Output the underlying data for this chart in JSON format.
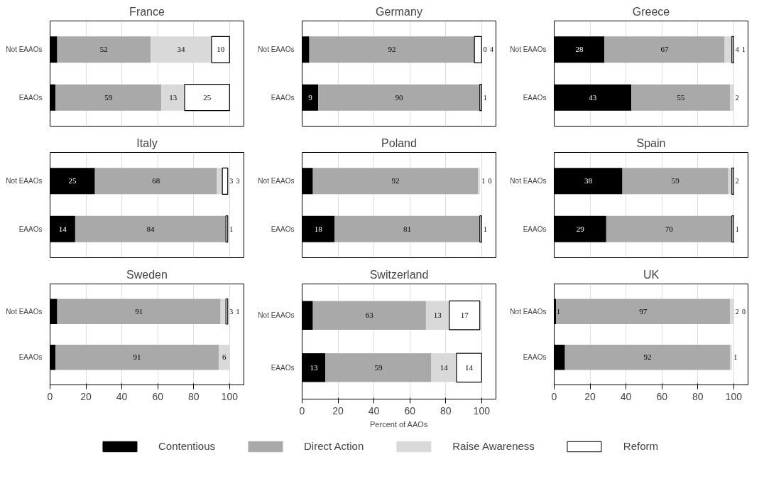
{
  "chart_data": [
    {
      "type": "bar",
      "title": "France",
      "orientation": "horizontal",
      "stacked": true,
      "categories": [
        "Not EAAOs",
        "EAAOs"
      ],
      "xlim": [
        0,
        108
      ],
      "xticks": [
        0,
        20,
        40,
        60,
        80,
        100
      ],
      "grid": "x",
      "tick_labels": "y",
      "series": [
        {
          "color": "#000000",
          "values": [
            4,
            3
          ],
          "value_labels": [
            null,
            null
          ]
        },
        {
          "color": "#a9a9a9",
          "values": [
            52,
            59
          ],
          "value_labels": [
            "52",
            "59"
          ]
        },
        {
          "color": "#d9d9d9",
          "values": [
            34,
            13
          ],
          "value_labels": [
            "34",
            "13"
          ]
        },
        {
          "color": "#ffffff",
          "values": [
            10,
            25
          ],
          "value_labels": [
            "10",
            "25"
          ]
        }
      ]
    },
    {
      "type": "bar",
      "title": "Germany",
      "orientation": "horizontal",
      "stacked": true,
      "categories": [
        "Not EAAOs",
        "EAAOs"
      ],
      "xlim": [
        0,
        108
      ],
      "xticks": [
        0,
        20,
        40,
        60,
        80,
        100
      ],
      "grid": "x",
      "tick_labels": "y",
      "series": [
        {
          "color": "#000000",
          "values": [
            4,
            9
          ],
          "value_labels": [
            null,
            "9"
          ]
        },
        {
          "color": "#a9a9a9",
          "values": [
            92,
            90
          ],
          "value_labels": [
            "92",
            "90"
          ]
        },
        {
          "color": "#d9d9d9",
          "values": [
            0,
            0
          ],
          "value_labels": [
            "0",
            null
          ]
        },
        {
          "color": "#ffffff",
          "values": [
            4,
            1
          ],
          "value_labels": [
            "4",
            "1"
          ]
        }
      ]
    },
    {
      "type": "bar",
      "title": "Greece",
      "orientation": "horizontal",
      "stacked": true,
      "categories": [
        "Not EAAOs",
        "EAAOs"
      ],
      "xlim": [
        0,
        108
      ],
      "xticks": [
        0,
        20,
        40,
        60,
        80,
        100
      ],
      "grid": "x",
      "tick_labels": "y",
      "series": [
        {
          "color": "#000000",
          "values": [
            28,
            43
          ],
          "value_labels": [
            "28",
            "43"
          ]
        },
        {
          "color": "#a9a9a9",
          "values": [
            67,
            55
          ],
          "value_labels": [
            "67",
            "55"
          ]
        },
        {
          "color": "#d9d9d9",
          "values": [
            4,
            2
          ],
          "value_labels": [
            "4",
            "2"
          ]
        },
        {
          "color": "#ffffff",
          "values": [
            1,
            0
          ],
          "value_labels": [
            "1",
            null
          ]
        }
      ]
    },
    {
      "type": "bar",
      "title": "Italy",
      "orientation": "horizontal",
      "stacked": true,
      "categories": [
        "Not EAAOs",
        "EAAOs"
      ],
      "xlim": [
        0,
        108
      ],
      "xticks": [
        0,
        20,
        40,
        60,
        80,
        100
      ],
      "grid": "x",
      "tick_labels": "y",
      "series": [
        {
          "color": "#000000",
          "values": [
            25,
            14
          ],
          "value_labels": [
            "25",
            "14"
          ]
        },
        {
          "color": "#a9a9a9",
          "values": [
            68,
            84
          ],
          "value_labels": [
            "68",
            "84"
          ]
        },
        {
          "color": "#d9d9d9",
          "values": [
            3,
            0
          ],
          "value_labels": [
            "3",
            null
          ]
        },
        {
          "color": "#ffffff",
          "values": [
            3,
            1
          ],
          "value_labels": [
            "3",
            "1"
          ]
        }
      ]
    },
    {
      "type": "bar",
      "title": "Poland",
      "orientation": "horizontal",
      "stacked": true,
      "categories": [
        "Not EAAOs",
        "EAAOs"
      ],
      "xlim": [
        0,
        108
      ],
      "xticks": [
        0,
        20,
        40,
        60,
        80,
        100
      ],
      "grid": "x",
      "tick_labels": "y",
      "series": [
        {
          "color": "#000000",
          "values": [
            6,
            18
          ],
          "value_labels": [
            null,
            "18"
          ]
        },
        {
          "color": "#a9a9a9",
          "values": [
            92,
            81
          ],
          "value_labels": [
            "92",
            "81"
          ]
        },
        {
          "color": "#d9d9d9",
          "values": [
            1,
            0
          ],
          "value_labels": [
            "1",
            null
          ]
        },
        {
          "color": "#ffffff",
          "values": [
            0,
            1
          ],
          "value_labels": [
            "0",
            "1"
          ]
        }
      ]
    },
    {
      "type": "bar",
      "title": "Spain",
      "orientation": "horizontal",
      "stacked": true,
      "categories": [
        "Not EAAOs",
        "EAAOs"
      ],
      "xlim": [
        0,
        108
      ],
      "xticks": [
        0,
        20,
        40,
        60,
        80,
        100
      ],
      "grid": "x",
      "tick_labels": "y",
      "series": [
        {
          "color": "#000000",
          "values": [
            38,
            29
          ],
          "value_labels": [
            "38",
            "29"
          ]
        },
        {
          "color": "#a9a9a9",
          "values": [
            59,
            70
          ],
          "value_labels": [
            "59",
            "70"
          ]
        },
        {
          "color": "#d9d9d9",
          "values": [
            2,
            0
          ],
          "value_labels": [
            "2",
            null
          ]
        },
        {
          "color": "#ffffff",
          "values": [
            1,
            1
          ],
          "value_labels": [
            null,
            "1"
          ]
        }
      ]
    },
    {
      "type": "bar",
      "title": "Sweden",
      "orientation": "horizontal",
      "stacked": true,
      "categories": [
        "Not EAAOs",
        "EAAOs"
      ],
      "xlim": [
        0,
        108
      ],
      "xticks": [
        0,
        20,
        40,
        60,
        80,
        100
      ],
      "grid": "x",
      "series": [
        {
          "color": "#000000",
          "values": [
            4,
            3
          ],
          "value_labels": [
            null,
            null
          ]
        },
        {
          "color": "#a9a9a9",
          "values": [
            91,
            91
          ],
          "value_labels": [
            "91",
            "91"
          ]
        },
        {
          "color": "#d9d9d9",
          "values": [
            3,
            6
          ],
          "value_labels": [
            "3",
            "6"
          ]
        },
        {
          "color": "#ffffff",
          "values": [
            1,
            0
          ],
          "value_labels": [
            "1",
            null
          ]
        }
      ]
    },
    {
      "type": "bar",
      "title": "Switzerland",
      "xlabel": "Percent of AAOs",
      "legend": "bottom",
      "orientation": "horizontal",
      "stacked": true,
      "categories": [
        "Not EAAOs",
        "EAAOs"
      ],
      "xlim": [
        0,
        108
      ],
      "xticks": [
        0,
        20,
        40,
        60,
        80,
        100
      ],
      "grid": "x",
      "series": [
        {
          "name": "Contentious",
          "color": "#000000",
          "values": [
            6,
            13
          ],
          "value_labels": [
            null,
            "13"
          ]
        },
        {
          "name": "Direct Action",
          "color": "#a9a9a9",
          "values": [
            63,
            59
          ],
          "value_labels": [
            "63",
            "59"
          ]
        },
        {
          "name": "Raise Awareness",
          "color": "#d9d9d9",
          "values": [
            13,
            14
          ],
          "value_labels": [
            "13",
            "14"
          ]
        },
        {
          "name": "Reform",
          "color": "#ffffff",
          "values": [
            17,
            14
          ],
          "value_labels": [
            "17",
            "14"
          ]
        }
      ]
    },
    {
      "type": "bar",
      "title": "UK",
      "orientation": "horizontal",
      "stacked": true,
      "categories": [
        "Not EAAOs",
        "EAAOs"
      ],
      "xlim": [
        0,
        108
      ],
      "xticks": [
        0,
        20,
        40,
        60,
        80,
        100
      ],
      "grid": "x",
      "series": [
        {
          "color": "#000000",
          "values": [
            1,
            6
          ],
          "value_labels": [
            "1",
            null
          ]
        },
        {
          "color": "#a9a9a9",
          "values": [
            97,
            92
          ],
          "value_labels": [
            "97",
            "92"
          ]
        },
        {
          "color": "#d9d9d9",
          "values": [
            2,
            1
          ],
          "value_labels": [
            "2",
            "1"
          ]
        },
        {
          "color": "#ffffff",
          "values": [
            0,
            0
          ],
          "value_labels": [
            "0",
            null
          ]
        }
      ]
    }
  ]
}
